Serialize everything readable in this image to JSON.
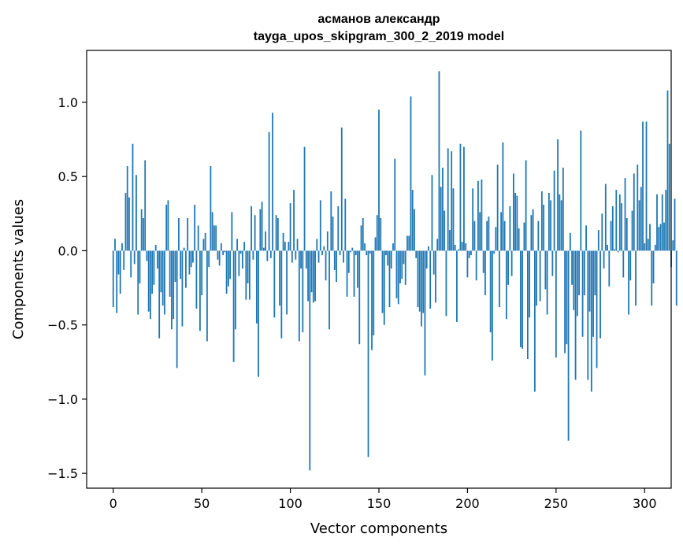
{
  "chart_data": {
    "type": "bar",
    "title": "асманов александр",
    "subtitle": "tayga_upos_skipgram_300_2_2019 model",
    "xlabel": "Vector components",
    "ylabel": "Components values",
    "xlim": [
      -15,
      315
    ],
    "ylim": [
      -1.6,
      1.35
    ],
    "xticks": [
      0,
      50,
      100,
      150,
      200,
      250,
      300
    ],
    "yticks": [
      -1.5,
      -1.0,
      -0.5,
      0.0,
      0.5,
      1.0
    ],
    "ytick_labels": [
      "−1.5",
      "−1.0",
      "−0.5",
      "0.0",
      "0.5",
      "1.0"
    ],
    "grid": false,
    "bar_color": "#1f77b4",
    "values": [
      -0.38,
      0.08,
      -0.42,
      -0.16,
      -0.29,
      0.05,
      -0.13,
      0.39,
      0.57,
      0.36,
      -0.18,
      0.72,
      -0.09,
      0.51,
      -0.43,
      -0.22,
      0.28,
      0.22,
      0.61,
      -0.07,
      -0.41,
      -0.46,
      -0.29,
      -0.23,
      0.04,
      -0.12,
      -0.59,
      -0.28,
      -0.37,
      -0.43,
      0.31,
      0.34,
      -0.31,
      -0.53,
      -0.46,
      -0.21,
      -0.79,
      0.22,
      -0.19,
      -0.51,
      0.02,
      -0.25,
      0.22,
      -0.16,
      -0.11,
      -0.08,
      0.31,
      -0.39,
      0.17,
      -0.54,
      -0.3,
      0.08,
      0.12,
      -0.61,
      -0.11,
      0.57,
      0.26,
      0.17,
      0.17,
      -0.06,
      -0.1,
      0.05,
      -0.03,
      -0.01,
      -0.29,
      -0.24,
      -0.19,
      0.26,
      -0.75,
      -0.53,
      0.08,
      -0.17,
      -0.02,
      -0.12,
      0.06,
      -0.33,
      -0.22,
      -0.33,
      0.3,
      -0.06,
      0.24,
      -0.49,
      -0.85,
      0.28,
      0.33,
      0.02,
      0.13,
      -0.07,
      0.8,
      -0.05,
      0.93,
      -0.45,
      0.24,
      0.22,
      -0.37,
      -0.59,
      0.12,
      0.06,
      -0.43,
      0.06,
      0.32,
      -0.08,
      0.41,
      -0.06,
      0.08,
      -0.61,
      -0.12,
      -0.55,
      0.7,
      -0.12,
      -0.34,
      -1.48,
      -0.28,
      -0.35,
      -0.34,
      0.08,
      -0.08,
      0.34,
      -0.03,
      0.03,
      -0.2,
      0.13,
      -0.53,
      0.4,
      0.23,
      -0.13,
      -0.21,
      0.3,
      -0.03,
      0.83,
      -0.08,
      0.35,
      -0.31,
      -0.15,
      -0.01,
      0.02,
      -0.31,
      -0.03,
      -0.25,
      -0.63,
      0.17,
      0.22,
      0.05,
      -0.03,
      -1.39,
      -0.02,
      -0.67,
      -0.57,
      0.09,
      0.24,
      0.95,
      0.22,
      -0.42,
      -0.5,
      -0.03,
      -0.1,
      -0.38,
      -0.12,
      0.05,
      0.62,
      -0.32,
      -0.36,
      -0.22,
      -0.19,
      -0.09,
      -0.23,
      0.1,
      0.1,
      1.04,
      0.41,
      0.28,
      -0.05,
      -0.38,
      -0.41,
      -0.51,
      -0.42,
      -0.84,
      -0.12,
      0.03,
      -0.39,
      0.51,
      -0.16,
      -0.35,
      0.08,
      1.21,
      0.43,
      0.56,
      0.27,
      -0.44,
      0.69,
      0.14,
      0.67,
      0.42,
      0.04,
      -0.48,
      0.01,
      0.72,
      0.06,
      0.7,
      0.05,
      -0.18,
      -0.05,
      -0.03,
      0.42,
      0.2,
      -0.2,
      0.47,
      0.26,
      0.48,
      -0.15,
      -0.3,
      0.2,
      0.23,
      -0.55,
      -0.74,
      -0.02,
      0.16,
      0.58,
      -0.38,
      0.26,
      0.73,
      0.2,
      -0.46,
      -0.23,
      0.3,
      -0.17,
      0.52,
      0.39,
      0.37,
      0.15,
      -0.65,
      -0.66,
      0.19,
      0.61,
      -0.73,
      -0.45,
      0.24,
      0.28,
      -0.95,
      -0.37,
      0.2,
      -0.34,
      0.4,
      0.31,
      -0.26,
      -0.43,
      0.39,
      0.34,
      -0.17,
      0.54,
      -0.72,
      0.75,
      0.38,
      0.34,
      0.56,
      -0.69,
      -0.63,
      -1.28,
      0.12,
      -0.23,
      -0.4,
      -0.87,
      -0.44,
      -0.3,
      0.81,
      -0.58,
      -0.3,
      0.17,
      -0.87,
      -0.41,
      -0.95,
      -0.58,
      -0.3,
      -0.79,
      0.14,
      -0.59,
      0.25,
      -0.12,
      0.45,
      0.04,
      -0.24,
      0.2,
      0.3,
      0.01,
      0.41,
      -0.01,
      0.38,
      0.32,
      -0.18,
      0.49,
      0.22,
      -0.43,
      -0.2,
      0.27,
      0.52,
      -0.37,
      0.58,
      0.34,
      0.43,
      0.87,
      0.05,
      0.87,
      0.08,
      0.18,
      -0.37,
      -0.22,
      0.04,
      0.38,
      0.16,
      0.18,
      0.38,
      0.19,
      0.41,
      1.08,
      0.72,
      -0.11,
      0.07,
      0.35,
      -0.37
    ]
  }
}
